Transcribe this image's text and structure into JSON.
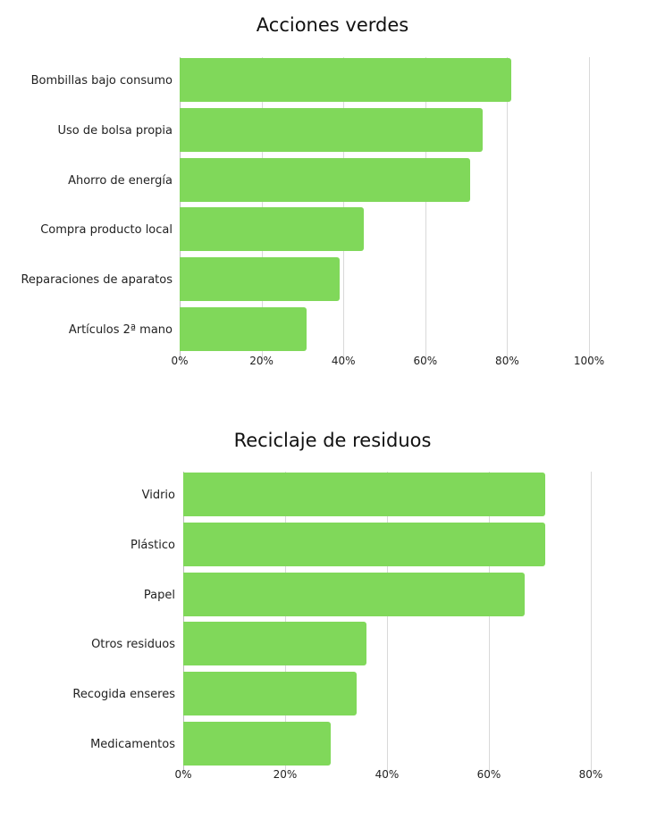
{
  "chart_data": [
    {
      "type": "bar",
      "orientation": "horizontal",
      "title": "Acciones verdes",
      "categories": [
        "Bombillas bajo consumo",
        "Uso de bolsa propia",
        "Ahorro de energía",
        "Compra producto local",
        "Reparaciones de aparatos",
        "Artículos 2ª mano"
      ],
      "values": [
        81,
        74,
        71,
        45,
        39,
        31
      ],
      "unit": "%",
      "xlabel": "",
      "ylabel": "",
      "xlim": [
        0,
        100
      ],
      "ticks": [
        "0%",
        "20%",
        "40%",
        "60%",
        "80%",
        "100%"
      ],
      "grid": true,
      "color": "#80d85a"
    },
    {
      "type": "bar",
      "orientation": "horizontal",
      "title": "Reciclaje de residuos",
      "categories": [
        "Vidrio",
        "Plástico",
        "Papel",
        "Otros residuos",
        "Recogida enseres",
        "Medicamentos"
      ],
      "values": [
        71,
        71,
        67,
        36,
        34,
        29
      ],
      "unit": "%",
      "xlabel": "",
      "ylabel": "",
      "xlim": [
        0,
        80
      ],
      "ticks": [
        "0%",
        "20%",
        "40%",
        "60%",
        "80%"
      ],
      "grid": true,
      "color": "#80d85a"
    }
  ]
}
